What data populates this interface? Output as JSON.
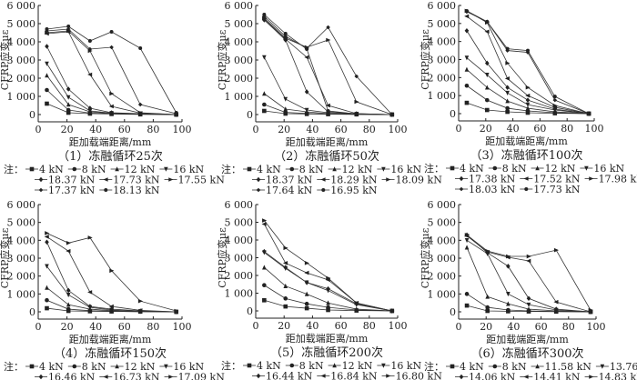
{
  "chart_data": [
    {
      "type": "line",
      "title": "（1）冻融循环25次",
      "xlabel": "距加载端距离/mm",
      "ylabel": "CFRP应变με",
      "xlim": [
        0,
        100
      ],
      "ylim": [
        0,
        6000
      ],
      "xticks": [
        0,
        20,
        40,
        60,
        80,
        100
      ],
      "yticks": [
        0,
        1000,
        2000,
        3000,
        4000,
        5000,
        6000
      ],
      "ytick_labels": [
        "0",
        "1 000",
        "2 000",
        "3 000",
        "4 000",
        "5 000",
        "6 000"
      ],
      "legend_prefix": "注：",
      "x": [
        6,
        21,
        36,
        51,
        71,
        96
      ],
      "series": [
        {
          "name": "4 kN",
          "values": [
            600,
            100,
            50,
            30,
            10,
            0
          ]
        },
        {
          "name": "8 kN",
          "values": [
            1350,
            250,
            80,
            40,
            20,
            0
          ]
        },
        {
          "name": "12 kN",
          "values": [
            2150,
            550,
            150,
            60,
            30,
            0
          ]
        },
        {
          "name": "16 kN",
          "values": [
            2800,
            950,
            200,
            80,
            40,
            0
          ]
        },
        {
          "name": "18.37 kN",
          "values": [
            3750,
            1400,
            350,
            100,
            50,
            0
          ]
        },
        {
          "name": "17.73 kN",
          "values": [
            4450,
            4550,
            2200,
            450,
            80,
            0
          ]
        },
        {
          "name": "17.55 kN",
          "values": [
            4500,
            4600,
            3500,
            1150,
            100,
            0
          ]
        },
        {
          "name": "17.37 kN",
          "values": [
            4600,
            4700,
            3600,
            3700,
            550,
            50
          ]
        },
        {
          "name": "18.13 kN",
          "values": [
            4700,
            4850,
            4050,
            4550,
            3650,
            100
          ]
        }
      ]
    },
    {
      "type": "line",
      "title": "（2）冻融循环50次",
      "xlabel": "距加载端距离/mm",
      "ylabel": "CFRP应变με",
      "xlim": [
        0,
        100
      ],
      "ylim": [
        0,
        6000
      ],
      "xticks": [
        0,
        20,
        40,
        60,
        80,
        100
      ],
      "yticks": [
        0,
        1000,
        2000,
        3000,
        4000,
        5000,
        6000
      ],
      "ytick_labels": [
        "0",
        "1 000",
        "2 000",
        "3 000",
        "4 000",
        "5 000",
        "6 000"
      ],
      "legend_prefix": "注：",
      "x": [
        6,
        21,
        36,
        51,
        71,
        96
      ],
      "series": [
        {
          "name": "4 kN",
          "values": [
            200,
            50,
            30,
            20,
            10,
            0
          ]
        },
        {
          "name": "8 kN",
          "values": [
            550,
            120,
            60,
            30,
            10,
            0
          ]
        },
        {
          "name": "12 kN",
          "values": [
            1150,
            300,
            150,
            50,
            20,
            0
          ]
        },
        {
          "name": "16 kN",
          "values": [
            3150,
            850,
            250,
            100,
            30,
            0
          ]
        },
        {
          "name": "18.37 kN",
          "values": [
            5200,
            4100,
            1250,
            150,
            50,
            0
          ]
        },
        {
          "name": "18.29 kN",
          "values": [
            5250,
            4150,
            3150,
            500,
            50,
            0
          ]
        },
        {
          "name": "18.09 kN",
          "values": [
            5300,
            4200,
            3700,
            4100,
            700,
            0
          ]
        },
        {
          "name": "17.64 kN",
          "values": [
            5400,
            4300,
            3650,
            4800,
            2100,
            0
          ]
        },
        {
          "name": "16.95 kN",
          "values": [
            5500,
            4450,
            3600,
            200,
            30,
            0
          ]
        }
      ]
    },
    {
      "type": "line",
      "title": "（3）冻融循环100次",
      "xlabel": "距加载端距离/mm",
      "ylabel": "CFRP应变με",
      "xlim": [
        0,
        100
      ],
      "ylim": [
        0,
        6000
      ],
      "xticks": [
        0,
        20,
        40,
        60,
        80,
        100
      ],
      "yticks": [
        0,
        1000,
        2000,
        3000,
        4000,
        5000,
        6000
      ],
      "ytick_labels": [
        "0",
        "1 000",
        "2 000",
        "3 000",
        "4 000",
        "5 000",
        "6 000"
      ],
      "legend_prefix": "注：",
      "x": [
        6,
        21,
        36,
        51,
        71,
        96
      ],
      "series": [
        {
          "name": "4 kN",
          "values": [
            600,
            200,
            100,
            50,
            20,
            0
          ]
        },
        {
          "name": "8 kN",
          "values": [
            1550,
            750,
            300,
            150,
            50,
            0
          ]
        },
        {
          "name": "12 kN",
          "values": [
            2450,
            1450,
            700,
            300,
            100,
            0
          ]
        },
        {
          "name": "16 kN",
          "values": [
            3100,
            2150,
            1150,
            500,
            200,
            0
          ]
        },
        {
          "name": "17.38 kN",
          "values": [
            4600,
            2800,
            1450,
            750,
            250,
            0
          ]
        },
        {
          "name": "17.52 kN",
          "values": [
            5400,
            4550,
            1950,
            1000,
            350,
            0
          ]
        },
        {
          "name": "17.98 kN",
          "values": [
            5700,
            5050,
            2800,
            1450,
            450,
            0
          ]
        },
        {
          "name": "18.03 kN",
          "values": [
            5650,
            5100,
            3500,
            3400,
            750,
            0
          ]
        },
        {
          "name": "17.73 kN",
          "values": [
            5700,
            5100,
            3600,
            3500,
            950,
            0
          ]
        }
      ]
    },
    {
      "type": "line",
      "title": "（4）冻融循环150次",
      "xlabel": "距加载端距离/mm",
      "ylabel": "CFRP应变με",
      "xlim": [
        0,
        100
      ],
      "ylim": [
        0,
        6000
      ],
      "xticks": [
        0,
        20,
        40,
        60,
        80,
        100
      ],
      "yticks": [
        0,
        1000,
        2000,
        3000,
        4000,
        5000,
        6000
      ],
      "ytick_labels": [
        "0",
        "1 000",
        "2 000",
        "3 000",
        "4 000",
        "5 000",
        "6 000"
      ],
      "legend_prefix": "注：",
      "x": [
        6,
        21,
        36,
        51,
        71,
        96
      ],
      "series": [
        {
          "name": "4 kN",
          "values": [
            200,
            50,
            30,
            20,
            10,
            0
          ]
        },
        {
          "name": "8 kN",
          "values": [
            650,
            150,
            60,
            30,
            10,
            0
          ]
        },
        {
          "name": "12 kN",
          "values": [
            1350,
            400,
            150,
            60,
            20,
            0
          ]
        },
        {
          "name": "16 kN",
          "values": [
            2550,
            950,
            250,
            100,
            30,
            0
          ]
        },
        {
          "name": "16.46 kN",
          "values": [
            3900,
            1200,
            300,
            150,
            50,
            0
          ]
        },
        {
          "name": "16.73 kN",
          "values": [
            4200,
            3400,
            1100,
            300,
            80,
            0
          ]
        },
        {
          "name": "17.09 kN",
          "values": [
            4400,
            3850,
            4150,
            2300,
            600,
            50
          ]
        }
      ]
    },
    {
      "type": "line",
      "title": "（5）冻融循环200次",
      "xlabel": "距加载端距离/mm",
      "ylabel": "CFRP应变με",
      "xlim": [
        0,
        100
      ],
      "ylim": [
        0,
        6000
      ],
      "xticks": [
        0,
        20,
        40,
        60,
        80,
        100
      ],
      "yticks": [
        0,
        1000,
        2000,
        3000,
        4000,
        5000,
        6000
      ],
      "ytick_labels": [
        "0",
        "1 000",
        "2 000",
        "3 000",
        "4 000",
        "5 000",
        "6 000"
      ],
      "legend_prefix": "注：",
      "x": [
        6,
        21,
        36,
        51,
        71,
        96
      ],
      "series": [
        {
          "name": "4 kN",
          "values": [
            600,
            250,
            150,
            50,
            20,
            0
          ]
        },
        {
          "name": "8 kN",
          "values": [
            1450,
            700,
            400,
            200,
            50,
            0
          ]
        },
        {
          "name": "12 kN",
          "values": [
            2450,
            1400,
            950,
            450,
            100,
            0
          ]
        },
        {
          "name": "16 kN",
          "values": [
            3300,
            2400,
            1600,
            1150,
            350,
            0
          ]
        },
        {
          "name": "16.44 kN",
          "values": [
            3350,
            2450,
            1600,
            1250,
            400,
            0
          ]
        },
        {
          "name": "16.84 kN",
          "values": [
            4900,
            2700,
            2150,
            1750,
            450,
            0
          ]
        },
        {
          "name": "16.80 kN",
          "values": [
            5100,
            3550,
            2700,
            1850,
            450,
            0
          ]
        }
      ]
    },
    {
      "type": "line",
      "title": "（6）冻融循环300次",
      "xlabel": "距加载端距离/mm",
      "ylabel": "CFRP应变με",
      "xlim": [
        0,
        100
      ],
      "ylim": [
        0,
        6000
      ],
      "xticks": [
        0,
        20,
        40,
        60,
        80,
        100
      ],
      "yticks": [
        0,
        1000,
        2000,
        3000,
        4000,
        5000,
        6000
      ],
      "ytick_labels": [
        "0",
        "1 000",
        "2 000",
        "3 000",
        "4 000",
        "5 000",
        "6 000"
      ],
      "legend_prefix": "注：",
      "x": [
        6,
        21,
        36,
        51,
        71,
        96
      ],
      "series": [
        {
          "name": "4 kN",
          "values": [
            350,
            50,
            30,
            20,
            10,
            0
          ]
        },
        {
          "name": "8 kN",
          "values": [
            1000,
            250,
            100,
            50,
            20,
            0
          ]
        },
        {
          "name": "11.58 kN",
          "values": [
            3600,
            850,
            450,
            150,
            50,
            0
          ]
        },
        {
          "name": "13.76 kN",
          "values": [
            4000,
            3250,
            1000,
            400,
            100,
            0
          ]
        },
        {
          "name": "14.06 kN",
          "values": [
            4300,
            3300,
            2550,
            750,
            150,
            0
          ]
        },
        {
          "name": "14.41 kN",
          "values": [
            4250,
            3350,
            3050,
            2850,
            550,
            0
          ]
        },
        {
          "name": "14.83 kN",
          "values": [
            4300,
            3400,
            3100,
            3100,
            3450,
            100
          ]
        }
      ]
    }
  ]
}
